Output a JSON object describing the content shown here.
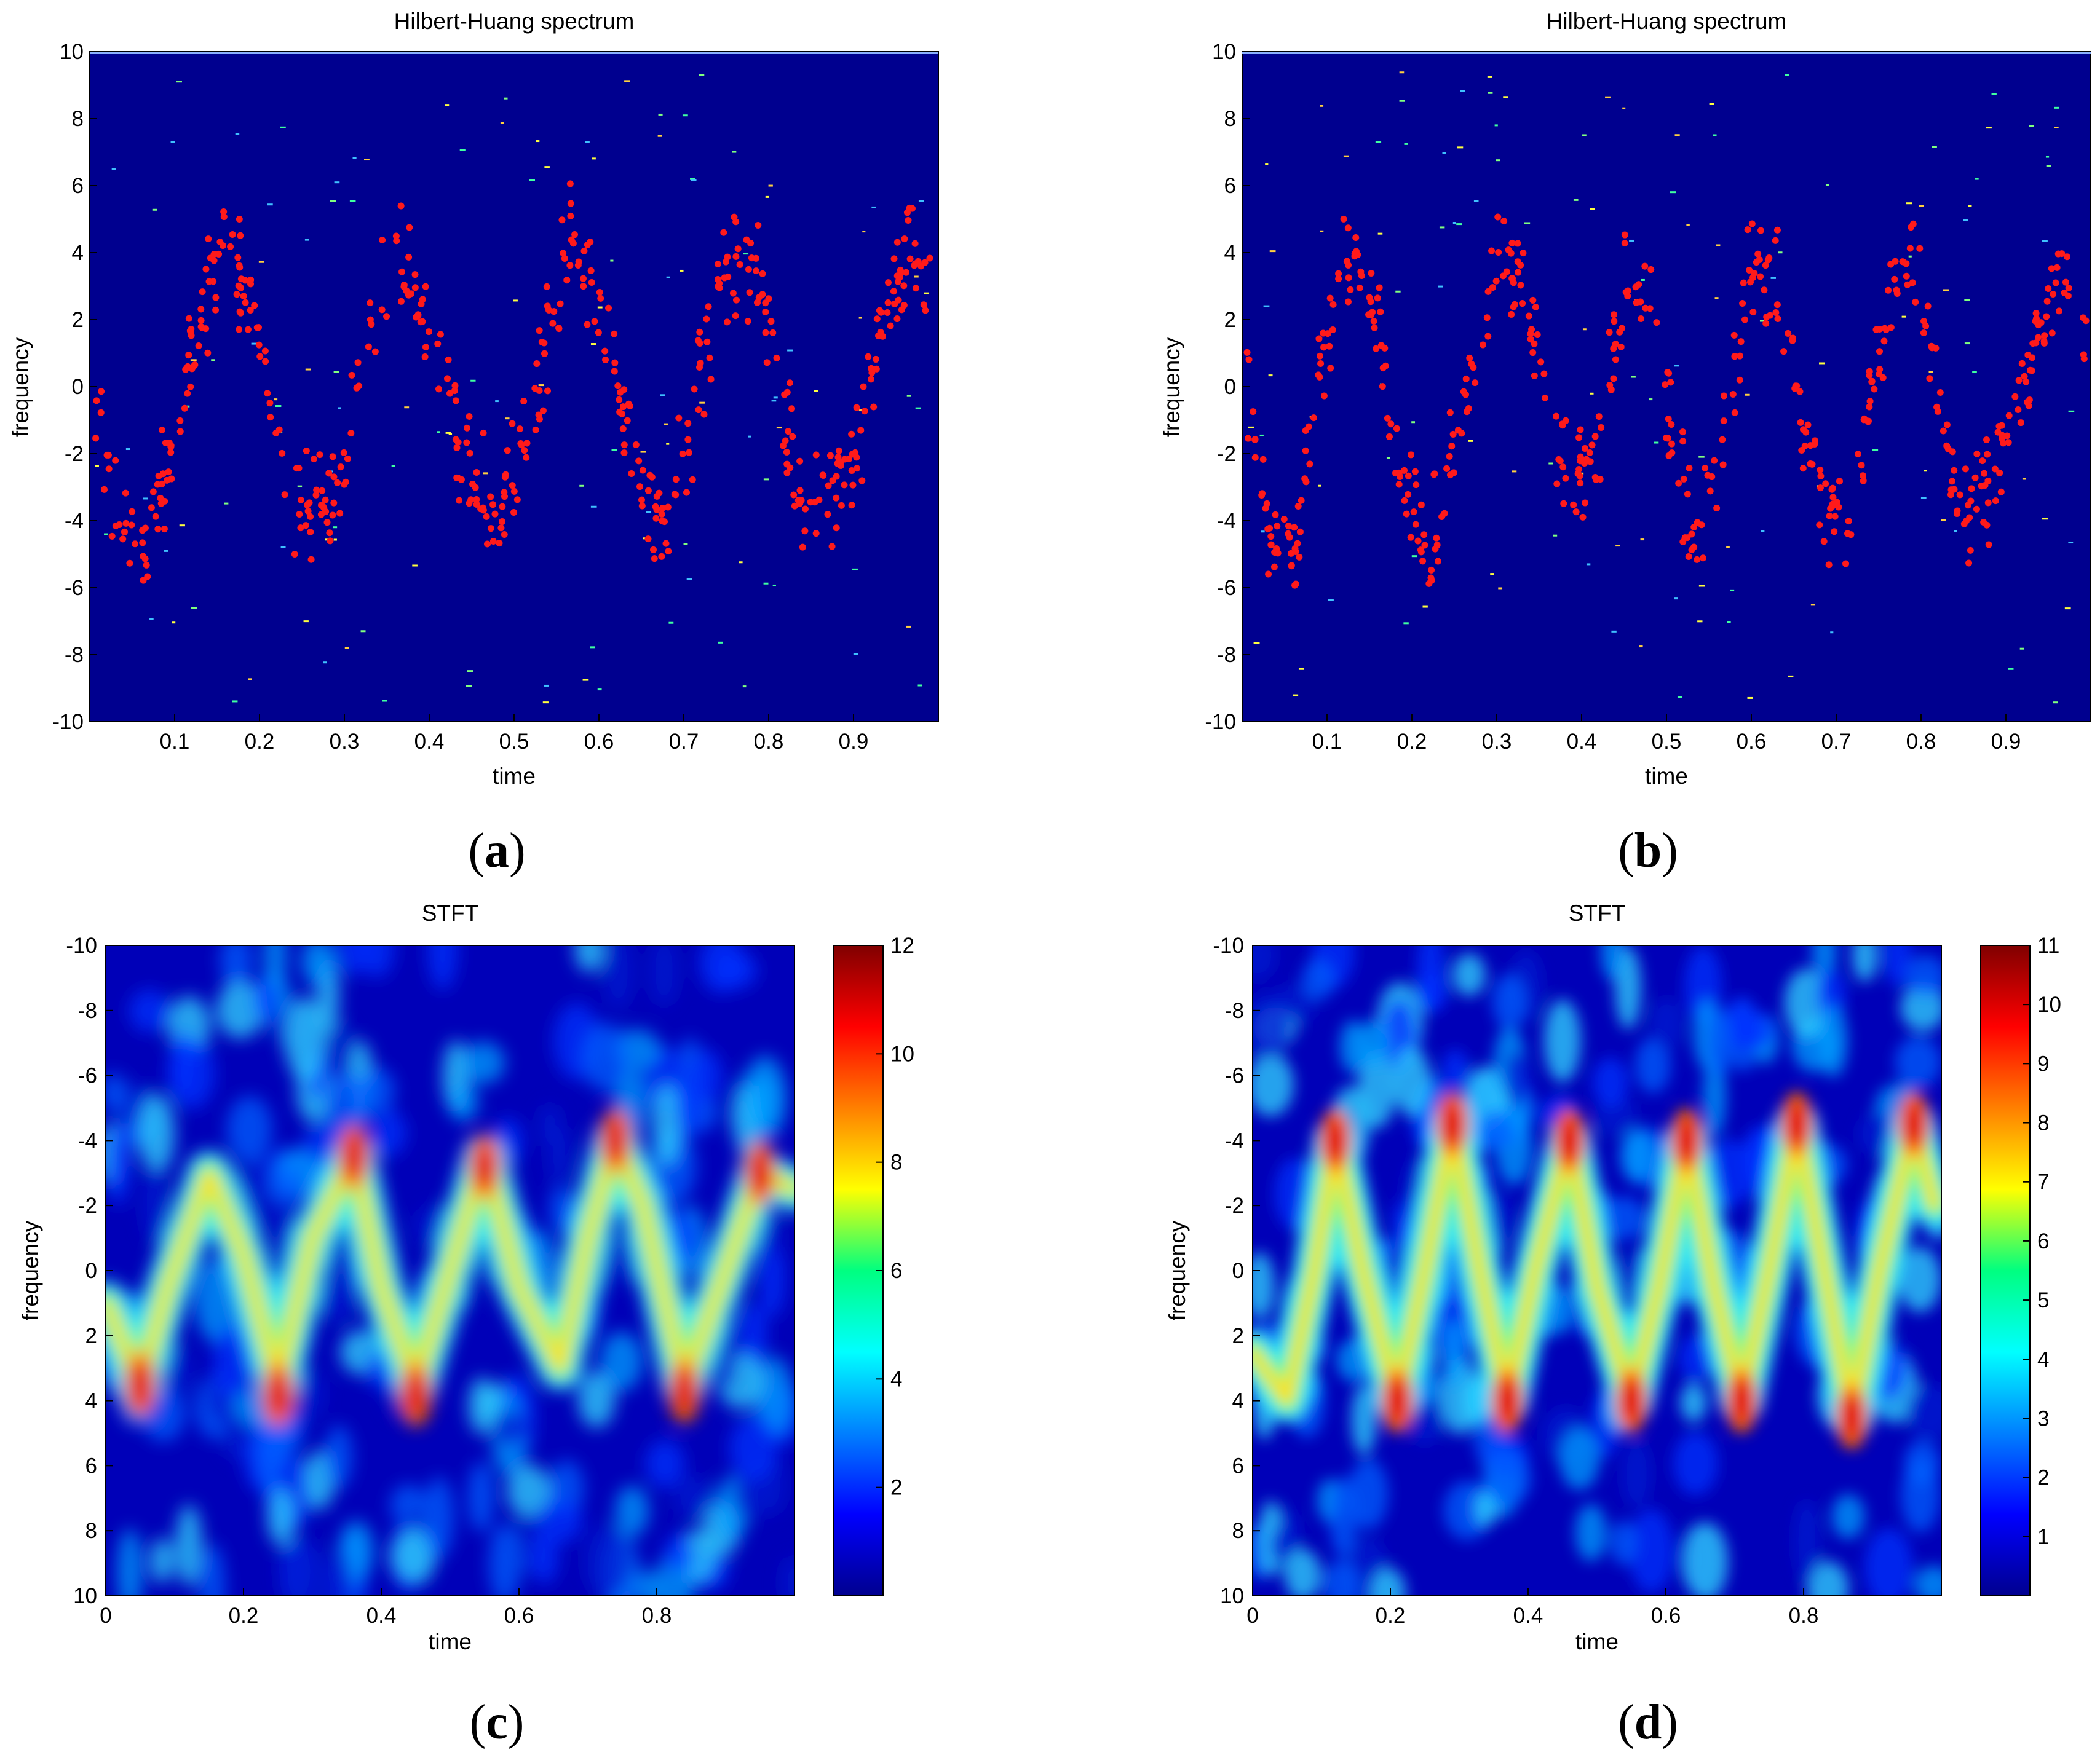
{
  "chart_data": [
    {
      "panel": "(a)",
      "type": "scatter",
      "title": "Hilbert-Huang spectrum",
      "xlabel": "time",
      "ylabel": "frequency",
      "xlim": [
        0,
        1
      ],
      "ylim": [
        -10,
        10
      ],
      "xticks": [
        "0.1",
        "0.2",
        "0.3",
        "0.4",
        "0.5",
        "0.6",
        "0.7",
        "0.8",
        "0.9"
      ],
      "yticks": [
        "10",
        "8",
        "6",
        "4",
        "2",
        "0",
        "-2",
        "-4",
        "-6",
        "-8",
        "-10"
      ],
      "background_color": "#00008f",
      "point_color": "#ff1a1a",
      "series": [
        {
          "description_of_trend": "points follow an oscillating curve",
          "centerline": [
            [
              0.0,
              0.0
            ],
            [
              0.04,
              -4.3
            ],
            [
              0.07,
              -4.7
            ],
            [
              0.1,
              -1.5
            ],
            [
              0.13,
              2.0
            ],
            [
              0.16,
              4.5
            ],
            [
              0.19,
              2.5
            ],
            [
              0.22,
              -2.0
            ],
            [
              0.26,
              -4.0
            ],
            [
              0.29,
              -3.5
            ],
            [
              0.32,
              1.0
            ],
            [
              0.36,
              4.0
            ],
            [
              0.39,
              2.5
            ],
            [
              0.42,
              -0.5
            ],
            [
              0.46,
              -3.5
            ],
            [
              0.5,
              -3.0
            ],
            [
              0.54,
              2.0
            ],
            [
              0.57,
              4.5
            ],
            [
              0.61,
              1.0
            ],
            [
              0.65,
              -3.0
            ],
            [
              0.68,
              -4.0
            ],
            [
              0.71,
              -1.0
            ],
            [
              0.74,
              3.0
            ],
            [
              0.78,
              4.0
            ],
            [
              0.81,
              0.0
            ],
            [
              0.84,
              -3.5
            ],
            [
              0.88,
              -3.0
            ],
            [
              0.91,
              -1.0
            ],
            [
              0.94,
              2.5
            ],
            [
              0.97,
              4.0
            ],
            [
              1.0,
              2.0
            ]
          ]
        }
      ]
    },
    {
      "panel": "(b)",
      "type": "scatter",
      "title": "Hilbert-Huang spectrum",
      "xlabel": "time",
      "ylabel": "frequency",
      "xlim": [
        0,
        1
      ],
      "ylim": [
        -10,
        10
      ],
      "xticks": [
        "0.1",
        "0.2",
        "0.3",
        "0.4",
        "0.5",
        "0.6",
        "0.7",
        "0.8",
        "0.9"
      ],
      "yticks": [
        "10",
        "8",
        "6",
        "4",
        "2",
        "0",
        "-2",
        "-4",
        "-6",
        "-8",
        "-10"
      ],
      "background_color": "#00008f",
      "point_color": "#ff1a1a",
      "series": [
        {
          "centerline": [
            [
              0.0,
              1.0
            ],
            [
              0.03,
              -4.0
            ],
            [
              0.06,
              -5.5
            ],
            [
              0.09,
              0.0
            ],
            [
              0.12,
              4.5
            ],
            [
              0.15,
              3.0
            ],
            [
              0.18,
              -1.5
            ],
            [
              0.22,
              -5.0
            ],
            [
              0.26,
              -1.0
            ],
            [
              0.3,
              4.0
            ],
            [
              0.33,
              3.5
            ],
            [
              0.36,
              -1.5
            ],
            [
              0.39,
              -3.0
            ],
            [
              0.42,
              -2.0
            ],
            [
              0.45,
              3.0
            ],
            [
              0.48,
              3.0
            ],
            [
              0.51,
              -2.0
            ],
            [
              0.53,
              -5.0
            ],
            [
              0.56,
              -2.5
            ],
            [
              0.6,
              3.5
            ],
            [
              0.63,
              3.0
            ],
            [
              0.66,
              -1.0
            ],
            [
              0.69,
              -4.0
            ],
            [
              0.72,
              -3.5
            ],
            [
              0.75,
              1.0
            ],
            [
              0.79,
              4.5
            ],
            [
              0.82,
              0.0
            ],
            [
              0.85,
              -3.5
            ],
            [
              0.88,
              -3.0
            ],
            [
              0.91,
              -1.0
            ],
            [
              0.94,
              2.0
            ],
            [
              0.98,
              3.5
            ],
            [
              1.0,
              0.5
            ]
          ]
        }
      ]
    },
    {
      "panel": "(c)",
      "type": "heatmap",
      "title": "STFT",
      "xlabel": "time",
      "ylabel": "frequency",
      "xlim": [
        0,
        1
      ],
      "ylim": [
        -10,
        10
      ],
      "xticks": [
        "0",
        "0.2",
        "0.4",
        "0.6",
        "0.8"
      ],
      "yticks": [
        "-10",
        "-8",
        "-6",
        "-4",
        "-2",
        "0",
        "2",
        "4",
        "6",
        "8",
        "10"
      ],
      "colorbar_ticks": [
        "2",
        "4",
        "6",
        "8",
        "10",
        "12"
      ],
      "colorbar_range": [
        0,
        12
      ],
      "ridge": [
        [
          0.0,
          1.0
        ],
        [
          0.05,
          3.5
        ],
        [
          0.09,
          0.5
        ],
        [
          0.15,
          -3.0
        ],
        [
          0.2,
          -0.5
        ],
        [
          0.25,
          3.5
        ],
        [
          0.3,
          -1.0
        ],
        [
          0.36,
          -3.5
        ],
        [
          0.4,
          0.5
        ],
        [
          0.45,
          3.5
        ],
        [
          0.5,
          0.0
        ],
        [
          0.55,
          -3.5
        ],
        [
          0.6,
          0.5
        ],
        [
          0.66,
          3.0
        ],
        [
          0.7,
          -1.0
        ],
        [
          0.74,
          -4.0
        ],
        [
          0.78,
          -2.0
        ],
        [
          0.84,
          3.5
        ],
        [
          0.9,
          0.0
        ],
        [
          0.95,
          -3.0
        ],
        [
          1.0,
          -2.5
        ]
      ],
      "hotspots": [
        [
          0.36,
          -3.5
        ],
        [
          0.55,
          -3.2
        ],
        [
          0.74,
          -4.0
        ],
        [
          0.95,
          -3.0
        ],
        [
          0.45,
          3.8
        ],
        [
          0.84,
          3.7
        ],
        [
          0.05,
          3.5
        ],
        [
          0.25,
          3.8
        ]
      ]
    },
    {
      "panel": "(d)",
      "type": "heatmap",
      "title": "STFT",
      "xlabel": "time",
      "ylabel": "frequency",
      "xlim": [
        0,
        1
      ],
      "ylim": [
        -10,
        10
      ],
      "xticks": [
        "0",
        "0.2",
        "0.4",
        "0.6",
        "0.8"
      ],
      "yticks": [
        "-10",
        "-8",
        "-6",
        "-4",
        "-2",
        "0",
        "2",
        "4",
        "6",
        "8",
        "10"
      ],
      "colorbar_ticks": [
        "1",
        "2",
        "3",
        "4",
        "5",
        "6",
        "7",
        "8",
        "9",
        "10",
        "11"
      ],
      "colorbar_range": [
        0,
        11
      ],
      "ridge": [
        [
          0.0,
          2.5
        ],
        [
          0.05,
          4.0
        ],
        [
          0.09,
          0.0
        ],
        [
          0.12,
          -4.0
        ],
        [
          0.16,
          0.0
        ],
        [
          0.21,
          4.0
        ],
        [
          0.25,
          0.0
        ],
        [
          0.29,
          -4.5
        ],
        [
          0.33,
          0.0
        ],
        [
          0.37,
          4.0
        ],
        [
          0.41,
          0.0
        ],
        [
          0.46,
          -4.0
        ],
        [
          0.5,
          0.5
        ],
        [
          0.55,
          4.0
        ],
        [
          0.59,
          0.5
        ],
        [
          0.63,
          -4.0
        ],
        [
          0.67,
          0.5
        ],
        [
          0.71,
          4.0
        ],
        [
          0.75,
          0.0
        ],
        [
          0.79,
          -4.5
        ],
        [
          0.83,
          0.0
        ],
        [
          0.87,
          4.5
        ],
        [
          0.91,
          0.0
        ],
        [
          0.96,
          -4.5
        ],
        [
          0.99,
          -2.0
        ]
      ],
      "hotspots": [
        [
          0.12,
          -4.0
        ],
        [
          0.29,
          -4.5
        ],
        [
          0.46,
          -4.0
        ],
        [
          0.63,
          -4.0
        ],
        [
          0.79,
          -4.5
        ],
        [
          0.96,
          -4.5
        ],
        [
          0.21,
          4.0
        ],
        [
          0.37,
          4.0
        ],
        [
          0.55,
          4.0
        ],
        [
          0.71,
          4.0
        ],
        [
          0.87,
          4.5
        ]
      ]
    }
  ],
  "panel_labels": {
    "a": {
      "open": "(",
      "letter": "a",
      "close": ")"
    },
    "b": {
      "open": "(",
      "letter": "b",
      "close": ")"
    },
    "c": {
      "open": "(",
      "letter": "c",
      "close": ")"
    },
    "d": {
      "open": "(",
      "letter": "d",
      "close": ")"
    }
  }
}
